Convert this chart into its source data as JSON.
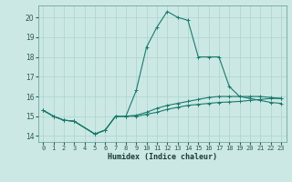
{
  "xlabel": "Humidex (Indice chaleur)",
  "background_color": "#cce8e4",
  "grid_color": "#aad4ce",
  "line_color": "#1a7a6e",
  "xlim": [
    -0.5,
    23.5
  ],
  "ylim": [
    13.7,
    20.6
  ],
  "yticks": [
    14,
    15,
    16,
    17,
    18,
    19,
    20
  ],
  "xticks": [
    0,
    1,
    2,
    3,
    4,
    5,
    6,
    7,
    8,
    9,
    10,
    11,
    12,
    13,
    14,
    15,
    16,
    17,
    18,
    19,
    20,
    21,
    22,
    23
  ],
  "series1_x": [
    0,
    1,
    2,
    3,
    5,
    6,
    7,
    8,
    9,
    10,
    11,
    12,
    13,
    14,
    15,
    16,
    17,
    18,
    19,
    20,
    21,
    22,
    23
  ],
  "series1_y": [
    15.3,
    15.0,
    14.8,
    14.75,
    14.1,
    14.3,
    15.0,
    15.0,
    16.3,
    18.5,
    19.5,
    20.3,
    20.0,
    19.85,
    18.0,
    18.0,
    18.0,
    16.5,
    16.0,
    15.9,
    15.8,
    15.7,
    15.65
  ],
  "series2_x": [
    0,
    1,
    2,
    3,
    5,
    6,
    7,
    8,
    9,
    10,
    11,
    12,
    13,
    14,
    15,
    16,
    17,
    18,
    19,
    20,
    21,
    22,
    23
  ],
  "series2_y": [
    15.3,
    15.0,
    14.8,
    14.75,
    14.1,
    14.3,
    15.0,
    15.0,
    15.0,
    15.1,
    15.2,
    15.35,
    15.45,
    15.55,
    15.6,
    15.65,
    15.7,
    15.72,
    15.75,
    15.8,
    15.85,
    15.9,
    15.9
  ],
  "series3_x": [
    0,
    1,
    2,
    3,
    5,
    6,
    7,
    8,
    9,
    10,
    11,
    12,
    13,
    14,
    15,
    16,
    17,
    18,
    19,
    20,
    21,
    22,
    23
  ],
  "series3_y": [
    15.3,
    15.0,
    14.8,
    14.75,
    14.1,
    14.3,
    15.0,
    15.0,
    15.05,
    15.2,
    15.4,
    15.55,
    15.65,
    15.75,
    15.85,
    15.95,
    16.0,
    16.0,
    16.0,
    16.0,
    16.0,
    15.95,
    15.9
  ]
}
